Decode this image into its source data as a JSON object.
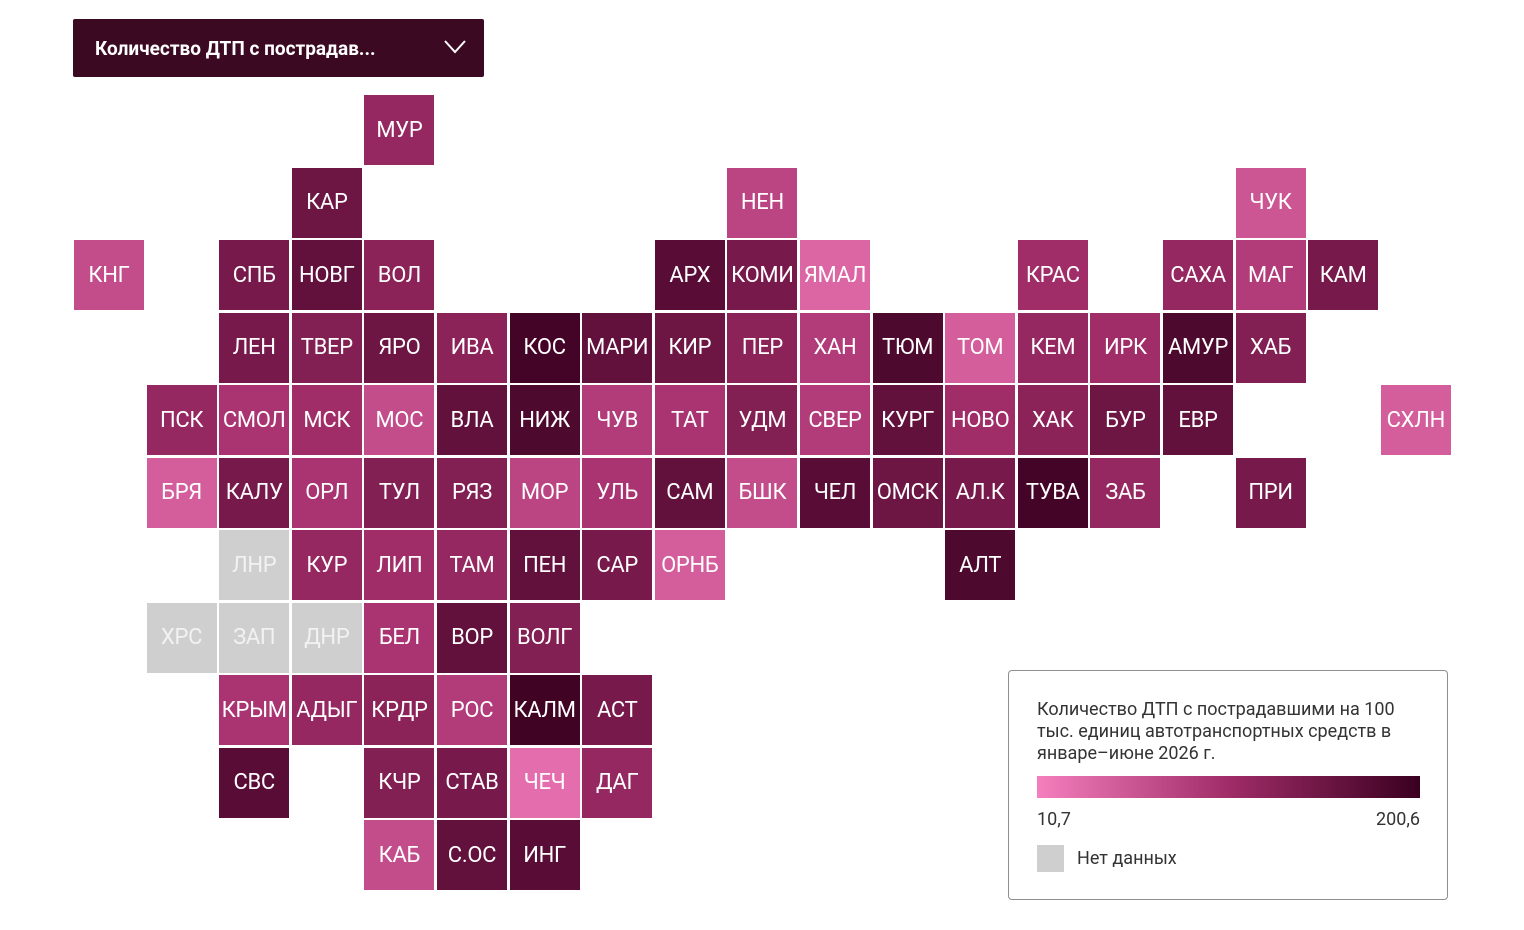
{
  "dropdown": {
    "label": "Количество ДТП с пострадав..."
  },
  "map": {
    "regions": [
      {
        "code": "МУР",
        "value": 115
      },
      {
        "code": "КАР",
        "value": 153
      },
      {
        "code": "НЕН",
        "value": 77
      },
      {
        "code": "ЧУК",
        "value": 58
      },
      {
        "code": "КНГ",
        "value": 68
      },
      {
        "code": "СПБ",
        "value": 144
      },
      {
        "code": "НОВГ",
        "value": 163
      },
      {
        "code": "ВОЛ",
        "value": 125
      },
      {
        "code": "АРХ",
        "value": 172
      },
      {
        "code": "КОМИ",
        "value": 144
      },
      {
        "code": "ЯМАЛ",
        "value": 39
      },
      {
        "code": "КРАС",
        "value": 106
      },
      {
        "code": "САХА",
        "value": 115
      },
      {
        "code": "МАГ",
        "value": 87
      },
      {
        "code": "КАМ",
        "value": 144
      },
      {
        "code": "ЛЕН",
        "value": 144
      },
      {
        "code": "ТВЕР",
        "value": 134
      },
      {
        "code": "ЯРО",
        "value": 153
      },
      {
        "code": "ИВА",
        "value": 125
      },
      {
        "code": "КОС",
        "value": 191
      },
      {
        "code": "МАРИ",
        "value": 163
      },
      {
        "code": "КИР",
        "value": 153
      },
      {
        "code": "ПЕР",
        "value": 125
      },
      {
        "code": "ХАН",
        "value": 87
      },
      {
        "code": "ТЮМ",
        "value": 182
      },
      {
        "code": "ТОМ",
        "value": 49
      },
      {
        "code": "КЕМ",
        "value": 115
      },
      {
        "code": "ИРК",
        "value": 106
      },
      {
        "code": "АМУР",
        "value": 182
      },
      {
        "code": "ХАБ",
        "value": 134
      },
      {
        "code": "ПСК",
        "value": 115
      },
      {
        "code": "СМОЛ",
        "value": 96
      },
      {
        "code": "МСК",
        "value": 106
      },
      {
        "code": "МОС",
        "value": 68
      },
      {
        "code": "ВЛА",
        "value": 163
      },
      {
        "code": "НИЖ",
        "value": 182
      },
      {
        "code": "ЧУВ",
        "value": 87
      },
      {
        "code": "ТАТ",
        "value": 96
      },
      {
        "code": "УДМ",
        "value": 134
      },
      {
        "code": "СВЕР",
        "value": 87
      },
      {
        "code": "КУРГ",
        "value": 163
      },
      {
        "code": "НОВО",
        "value": 106
      },
      {
        "code": "ХАК",
        "value": 125
      },
      {
        "code": "БУР",
        "value": 153
      },
      {
        "code": "ЕВР",
        "value": 163
      },
      {
        "code": "СХЛН",
        "value": 49
      },
      {
        "code": "БРЯ",
        "value": 49
      },
      {
        "code": "КАЛУ",
        "value": 144
      },
      {
        "code": "ОРЛ",
        "value": 96
      },
      {
        "code": "ТУЛ",
        "value": 134
      },
      {
        "code": "РЯЗ",
        "value": 134
      },
      {
        "code": "МОР",
        "value": 77
      },
      {
        "code": "УЛЬ",
        "value": 96
      },
      {
        "code": "САМ",
        "value": 163
      },
      {
        "code": "БШК",
        "value": 68
      },
      {
        "code": "ЧЕЛ",
        "value": 172
      },
      {
        "code": "ОМСК",
        "value": 153
      },
      {
        "code": "АЛ.К",
        "value": 144
      },
      {
        "code": "ТУВА",
        "value": 191
      },
      {
        "code": "ЗАБ",
        "value": 115
      },
      {
        "code": "ПРИ",
        "value": 144
      },
      {
        "code": "ЛНР",
        "value": null
      },
      {
        "code": "КУР",
        "value": 115
      },
      {
        "code": "ЛИП",
        "value": 106
      },
      {
        "code": "ТАМ",
        "value": 115
      },
      {
        "code": "ПЕН",
        "value": 163
      },
      {
        "code": "САР",
        "value": 144
      },
      {
        "code": "ОРНБ",
        "value": 49
      },
      {
        "code": "АЛТ",
        "value": 182
      },
      {
        "code": "ХРС",
        "value": null
      },
      {
        "code": "ЗАП",
        "value": null
      },
      {
        "code": "ДНР",
        "value": null
      },
      {
        "code": "БЕЛ",
        "value": 96
      },
      {
        "code": "ВОР",
        "value": 163
      },
      {
        "code": "ВОЛГ",
        "value": 134
      },
      {
        "code": "КРЫМ",
        "value": 96
      },
      {
        "code": "АДЫГ",
        "value": 115
      },
      {
        "code": "КРДР",
        "value": 125
      },
      {
        "code": "РОС",
        "value": 87
      },
      {
        "code": "КАЛМ",
        "value": 195
      },
      {
        "code": "АСТ",
        "value": 144
      },
      {
        "code": "СВС",
        "value": 172
      },
      {
        "code": "КЧР",
        "value": 134
      },
      {
        "code": "СТАВ",
        "value": 144
      },
      {
        "code": "ЧЕЧ",
        "value": 30
      },
      {
        "code": "ДАГ",
        "value": 115
      },
      {
        "code": "КАБ",
        "value": 68
      },
      {
        "code": "С.ОС",
        "value": 163
      },
      {
        "code": "ИНГ",
        "value": 172
      }
    ],
    "scale": {
      "min": {
        "value": 10.7,
        "label": "10,7"
      },
      "max": {
        "value": 200.6,
        "label": "200,6"
      },
      "colors": [
        "#f57fbe",
        "#a02c68",
        "#3a0020"
      ]
    },
    "no_data": {
      "label": "Нет данных",
      "color": "#cfcfcf"
    }
  },
  "legend": {
    "title": "Количество ДТП с пострадавшими на 100 тыс. единиц автотранспортных средств в январе–июне 2026 г."
  }
}
